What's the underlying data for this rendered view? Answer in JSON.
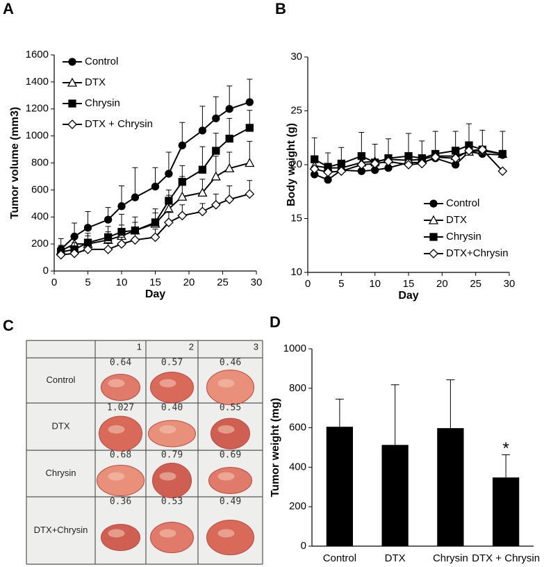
{
  "chart_data": [
    {
      "type": "line",
      "label": "A",
      "xlabel": "Day",
      "ylabel": "Tumor volume (mm3)",
      "x": [
        1,
        3,
        5,
        8,
        10,
        12,
        15,
        17,
        19,
        22,
        24,
        26,
        29
      ],
      "xlim": [
        0,
        30
      ],
      "xticks": [
        0,
        5,
        10,
        15,
        20,
        25,
        30
      ],
      "ylim": [
        0,
        1600
      ],
      "yticks": [
        0,
        200,
        400,
        600,
        800,
        1000,
        1200,
        1400,
        1600
      ],
      "legend": "upper left",
      "series": [
        {
          "name": "Control",
          "color": "#000000",
          "fill": "#000000",
          "marker": "circle",
          "values": [
            160,
            255,
            320,
            380,
            480,
            545,
            625,
            720,
            930,
            1040,
            1130,
            1200,
            1250
          ],
          "errors": [
            80,
            100,
            120,
            90,
            150,
            220,
            140,
            160,
            170,
            180,
            160,
            170,
            170
          ]
        },
        {
          "name": "DTX",
          "color": "#000000",
          "fill": "#ffffff",
          "marker": "triangle",
          "values": [
            150,
            200,
            200,
            230,
            260,
            300,
            350,
            460,
            550,
            580,
            700,
            760,
            800
          ],
          "errors": [
            40,
            60,
            60,
            60,
            80,
            60,
            80,
            100,
            150,
            100,
            150,
            120,
            160
          ]
        },
        {
          "name": "Chrysin",
          "color": "#000000",
          "fill": "#000000",
          "marker": "square",
          "values": [
            140,
            160,
            210,
            250,
            290,
            300,
            360,
            520,
            660,
            750,
            890,
            980,
            1060
          ],
          "errors": [
            50,
            50,
            70,
            80,
            130,
            100,
            100,
            80,
            120,
            170,
            130,
            150,
            130
          ]
        },
        {
          "name": "DTX + Chrysin",
          "color": "#000000",
          "fill": "#ffffff",
          "marker": "diamond",
          "values": [
            120,
            130,
            160,
            160,
            200,
            230,
            250,
            360,
            410,
            440,
            490,
            530,
            570
          ],
          "errors": [
            40,
            50,
            50,
            50,
            50,
            50,
            60,
            80,
            80,
            60,
            80,
            100,
            100
          ]
        }
      ]
    },
    {
      "type": "line",
      "label": "B",
      "xlabel": "Day",
      "ylabel": "Body weight (g)",
      "x": [
        1,
        3,
        5,
        8,
        10,
        12,
        15,
        17,
        19,
        22,
        24,
        26,
        29
      ],
      "xlim": [
        0,
        30
      ],
      "xticks": [
        0,
        5,
        10,
        15,
        20,
        25,
        30
      ],
      "ylim": [
        10,
        30
      ],
      "yticks": [
        10,
        15,
        20,
        25,
        30
      ],
      "legend": "lower right",
      "series": [
        {
          "name": "Control",
          "color": "#000000",
          "fill": "#000000",
          "marker": "circle",
          "values": [
            19.1,
            18.6,
            19.5,
            19.4,
            19.5,
            19.7,
            20.2,
            20.2,
            20.6,
            20.0,
            21.2,
            21.0,
            20.9
          ]
        },
        {
          "name": "DTX",
          "color": "#000000",
          "fill": "#ffffff",
          "marker": "triangle",
          "values": [
            19.9,
            19.7,
            19.7,
            20.2,
            20.3,
            20.5,
            20.4,
            20.5,
            20.8,
            20.8,
            21.2,
            21.3,
            21.0
          ]
        },
        {
          "name": "Chrysin",
          "color": "#000000",
          "fill": "#000000",
          "marker": "square",
          "values": [
            20.5,
            19.8,
            20.1,
            20.8,
            20.2,
            20.6,
            20.8,
            20.6,
            21.0,
            21.3,
            21.8,
            21.4,
            21.0
          ],
          "errors": [
            2.0,
            1.3,
            1.5,
            2.2,
            1.7,
            1.8,
            2.1,
            1.6,
            2.1,
            1.8,
            2.0,
            1.8,
            2.1
          ]
        },
        {
          "name": "DTX+Chrysin",
          "color": "#000000",
          "fill": "#ffffff",
          "marker": "diamond",
          "values": [
            19.6,
            19.3,
            19.4,
            20.0,
            20.1,
            20.3,
            20.0,
            20.1,
            20.7,
            20.6,
            21.3,
            21.4,
            19.4
          ]
        }
      ]
    },
    {
      "type": "bar",
      "label": "D",
      "ylabel": "Tumor weight (mg)",
      "categories": [
        "Control",
        "DTX",
        "Chrysin",
        "DTX + Chrysin"
      ],
      "values": [
        605,
        513,
        598,
        348
      ],
      "errors": [
        140,
        305,
        245,
        115
      ],
      "color": "#000000",
      "ylim": [
        0,
        1000
      ],
      "yticks": [
        0,
        200,
        400,
        600,
        800,
        1000
      ],
      "annotations": [
        {
          "text": "*",
          "x": "DTX + Chrysin"
        }
      ]
    }
  ],
  "photo": {
    "label": "C",
    "columns": [
      "1",
      "2",
      "3"
    ],
    "rows": [
      {
        "label": "Control",
        "weights": [
          "0.64",
          "0.57",
          "0.46"
        ]
      },
      {
        "label": "DTX",
        "weights": [
          "1.027",
          "0.40",
          "0.55"
        ]
      },
      {
        "label": "Chrysin",
        "weights": [
          "0.68",
          "0.79",
          "0.69"
        ]
      },
      {
        "label": "DTX+Chrysin",
        "weights": [
          "0.36",
          "0.53",
          "0.49"
        ]
      }
    ]
  }
}
